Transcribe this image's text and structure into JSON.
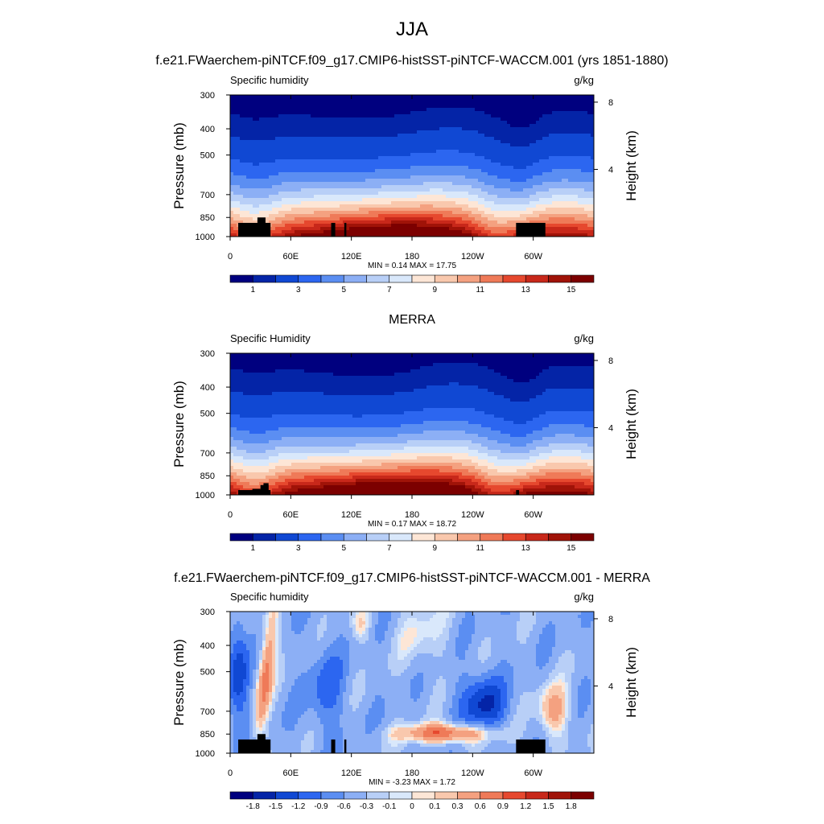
{
  "figure": {
    "season": "JJA",
    "panel1_title": "f.e21.FWaerchem-piNTCF.f09_g17.CMIP6-histSST-piNTCF-WACCM.001 (yrs 1851-1880)",
    "panel2_title": "MERRA",
    "panel3_title": "f.e21.FWaerchem-piNTCF.f09_g17.CMIP6-histSST-piNTCF-WACCM.001 - MERRA"
  },
  "panels": [
    {
      "var_label": "Specific humidity",
      "units": "g/kg",
      "min_max": "MIN =   0.14  MAX =  17.75",
      "ylabel": "Pressure (mb)",
      "y2label": "Height (km)"
    },
    {
      "var_label": "Specific Humidity",
      "units": "g/kg",
      "min_max": "MIN =   0.17  MAX =  18.72",
      "ylabel": "Pressure (mb)",
      "y2label": "Height (km)"
    },
    {
      "var_label": "Specific humidity",
      "units": "g/kg",
      "min_max": "MIN =  -3.23  MAX =   1.72",
      "ylabel": "Pressure (mb)",
      "y2label": "Height (km)"
    }
  ],
  "axes": {
    "xticks": [
      "0",
      "60E",
      "120E",
      "180",
      "120W",
      "60W"
    ],
    "xtick_lon": [
      0,
      60,
      120,
      180,
      240,
      300
    ],
    "xlim": [
      0,
      360
    ],
    "pressure_ticks": [
      "300",
      "400",
      "500",
      "700",
      "850",
      "1000"
    ],
    "pressure_tick_values": [
      300,
      400,
      500,
      700,
      850,
      1000
    ],
    "ylim": [
      1000,
      300
    ],
    "yscale": "log",
    "height_ticks": [
      "8",
      "4"
    ],
    "height_tick_values": [
      8,
      4
    ]
  },
  "colorbars": {
    "abs_labels": [
      "1",
      "3",
      "5",
      "7",
      "9",
      "11",
      "13",
      "15"
    ],
    "abs_levels": [
      0.5,
      1,
      2,
      3,
      4,
      5,
      6,
      7,
      8,
      9,
      10,
      11,
      12,
      13,
      14,
      15
    ],
    "diff_labels": [
      "-1.8",
      "-1.5",
      "-1.2",
      "-0.9",
      "-0.6",
      "-0.3",
      "-0.1",
      "0",
      "0.1",
      "0.3",
      "0.6",
      "0.9",
      "1.2",
      "1.5",
      "1.8"
    ],
    "diff_levels": [
      -1.8,
      -1.5,
      -1.2,
      -0.9,
      -0.6,
      -0.3,
      -0.1,
      0,
      0.1,
      0.3,
      0.6,
      0.9,
      1.2,
      1.5,
      1.8
    ],
    "colors": [
      "#00007f",
      "#0424a7",
      "#1048d3",
      "#2c66f0",
      "#5b8ef2",
      "#8caff5",
      "#b8cff7",
      "#d9e8fb",
      "#fde6d6",
      "#f9c8ad",
      "#f4a180",
      "#ef7a58",
      "#e6482e",
      "#c8281a",
      "#a01308",
      "#7c0000"
    ]
  },
  "chart_data": [
    {
      "type": "heatmap",
      "title": "f.e21.FWaerchem-piNTCF.f09_g17.CMIP6-histSST-piNTCF-WACCM.001 (yrs 1851-1880)",
      "variable": "Specific humidity",
      "units": "g/kg",
      "xlabel": "",
      "ylabel": "Pressure (mb)",
      "y2label": "Height (km)",
      "xlim": [
        0,
        360
      ],
      "ylim": [
        1000,
        300
      ],
      "min": 0.14,
      "max": 17.75,
      "surface_q_by_lon": {
        "lon": [
          0,
          30,
          60,
          90,
          120,
          150,
          180,
          210,
          240,
          270,
          300,
          330,
          360
        ],
        "q1000": [
          15,
          12,
          14,
          16,
          17,
          17.5,
          17.5,
          17,
          16.5,
          13,
          14,
          15,
          15
        ]
      }
    },
    {
      "type": "heatmap",
      "title": "MERRA",
      "variable": "Specific Humidity",
      "units": "g/kg",
      "xlabel": "",
      "ylabel": "Pressure (mb)",
      "y2label": "Height (km)",
      "xlim": [
        0,
        360
      ],
      "ylim": [
        1000,
        300
      ],
      "min": 0.17,
      "max": 18.72
    },
    {
      "type": "heatmap",
      "title": "f.e21.FWaerchem-piNTCF.f09_g17.CMIP6-histSST-piNTCF-WACCM.001 - MERRA",
      "variable": "Specific humidity",
      "units": "g/kg",
      "xlabel": "",
      "ylabel": "Pressure (mb)",
      "y2label": "Height (km)",
      "xlim": [
        0,
        360
      ],
      "ylim": [
        1000,
        300
      ],
      "min": -3.23,
      "max": 1.72
    }
  ]
}
